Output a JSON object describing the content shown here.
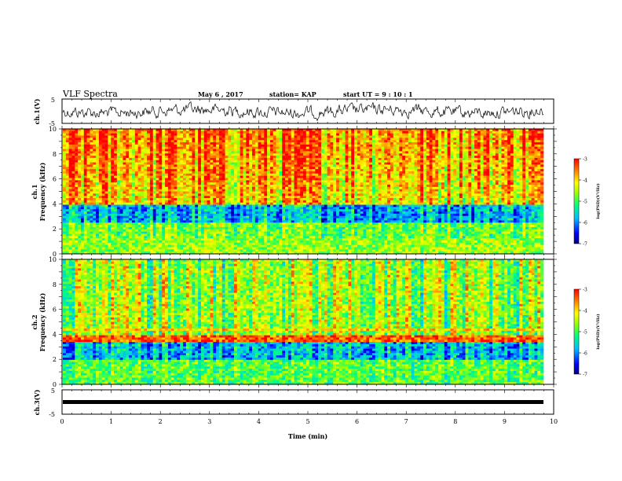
{
  "header": {
    "title": "VLF  Spectra",
    "date": "May 6  , 2017",
    "station": "station= KAP",
    "start": "start  UT  =   9 : 10 : 1"
  },
  "chart_data": [
    {
      "type": "line",
      "panel": "ch1-waveform",
      "ylabel": "ch.1(V)",
      "ylim": [
        -5,
        5
      ],
      "yticks": [
        "5",
        "-5"
      ],
      "xlim": [
        0,
        10
      ]
    },
    {
      "type": "heatmap",
      "panel": "ch1-spectrogram",
      "ylabel_line1": "ch.1",
      "ylabel_line2": "Frequency  (kHz)",
      "ylim": [
        0,
        10
      ],
      "yticks": [
        "0",
        "2",
        "4",
        "6",
        "8",
        "10"
      ],
      "xlim": [
        0,
        10
      ],
      "colorbar": {
        "label": "log(PSD)(V²/Hz)",
        "range": [
          -7,
          -3
        ],
        "ticks": [
          "-3",
          "-4",
          "-5",
          "-6",
          "-7"
        ]
      }
    },
    {
      "type": "heatmap",
      "panel": "ch2-spectrogram",
      "ylabel_line1": "ch.2",
      "ylabel_line2": "Frequency  (kHz)",
      "ylim": [
        0,
        10
      ],
      "yticks": [
        "0",
        "2",
        "4",
        "6",
        "8",
        "10"
      ],
      "xlim": [
        0,
        10
      ],
      "colorbar": {
        "label": "log(PSD)(V²/Hz)",
        "range": [
          -7,
          -3
        ],
        "ticks": [
          "-3",
          "-4",
          "-5",
          "-6",
          "-7"
        ]
      }
    },
    {
      "type": "line",
      "panel": "ch3-waveform",
      "ylabel": "ch.3(V)",
      "ylim": [
        -5,
        5
      ],
      "yticks": [
        "5",
        "-5"
      ],
      "xlim": [
        0,
        10
      ],
      "xlabel": "Time  (min)",
      "xticks": [
        "0",
        "1",
        "2",
        "3",
        "4",
        "5",
        "6",
        "7",
        "8",
        "9",
        "10"
      ]
    }
  ],
  "colors": {
    "axis": "#000000",
    "trace": "#000000"
  }
}
